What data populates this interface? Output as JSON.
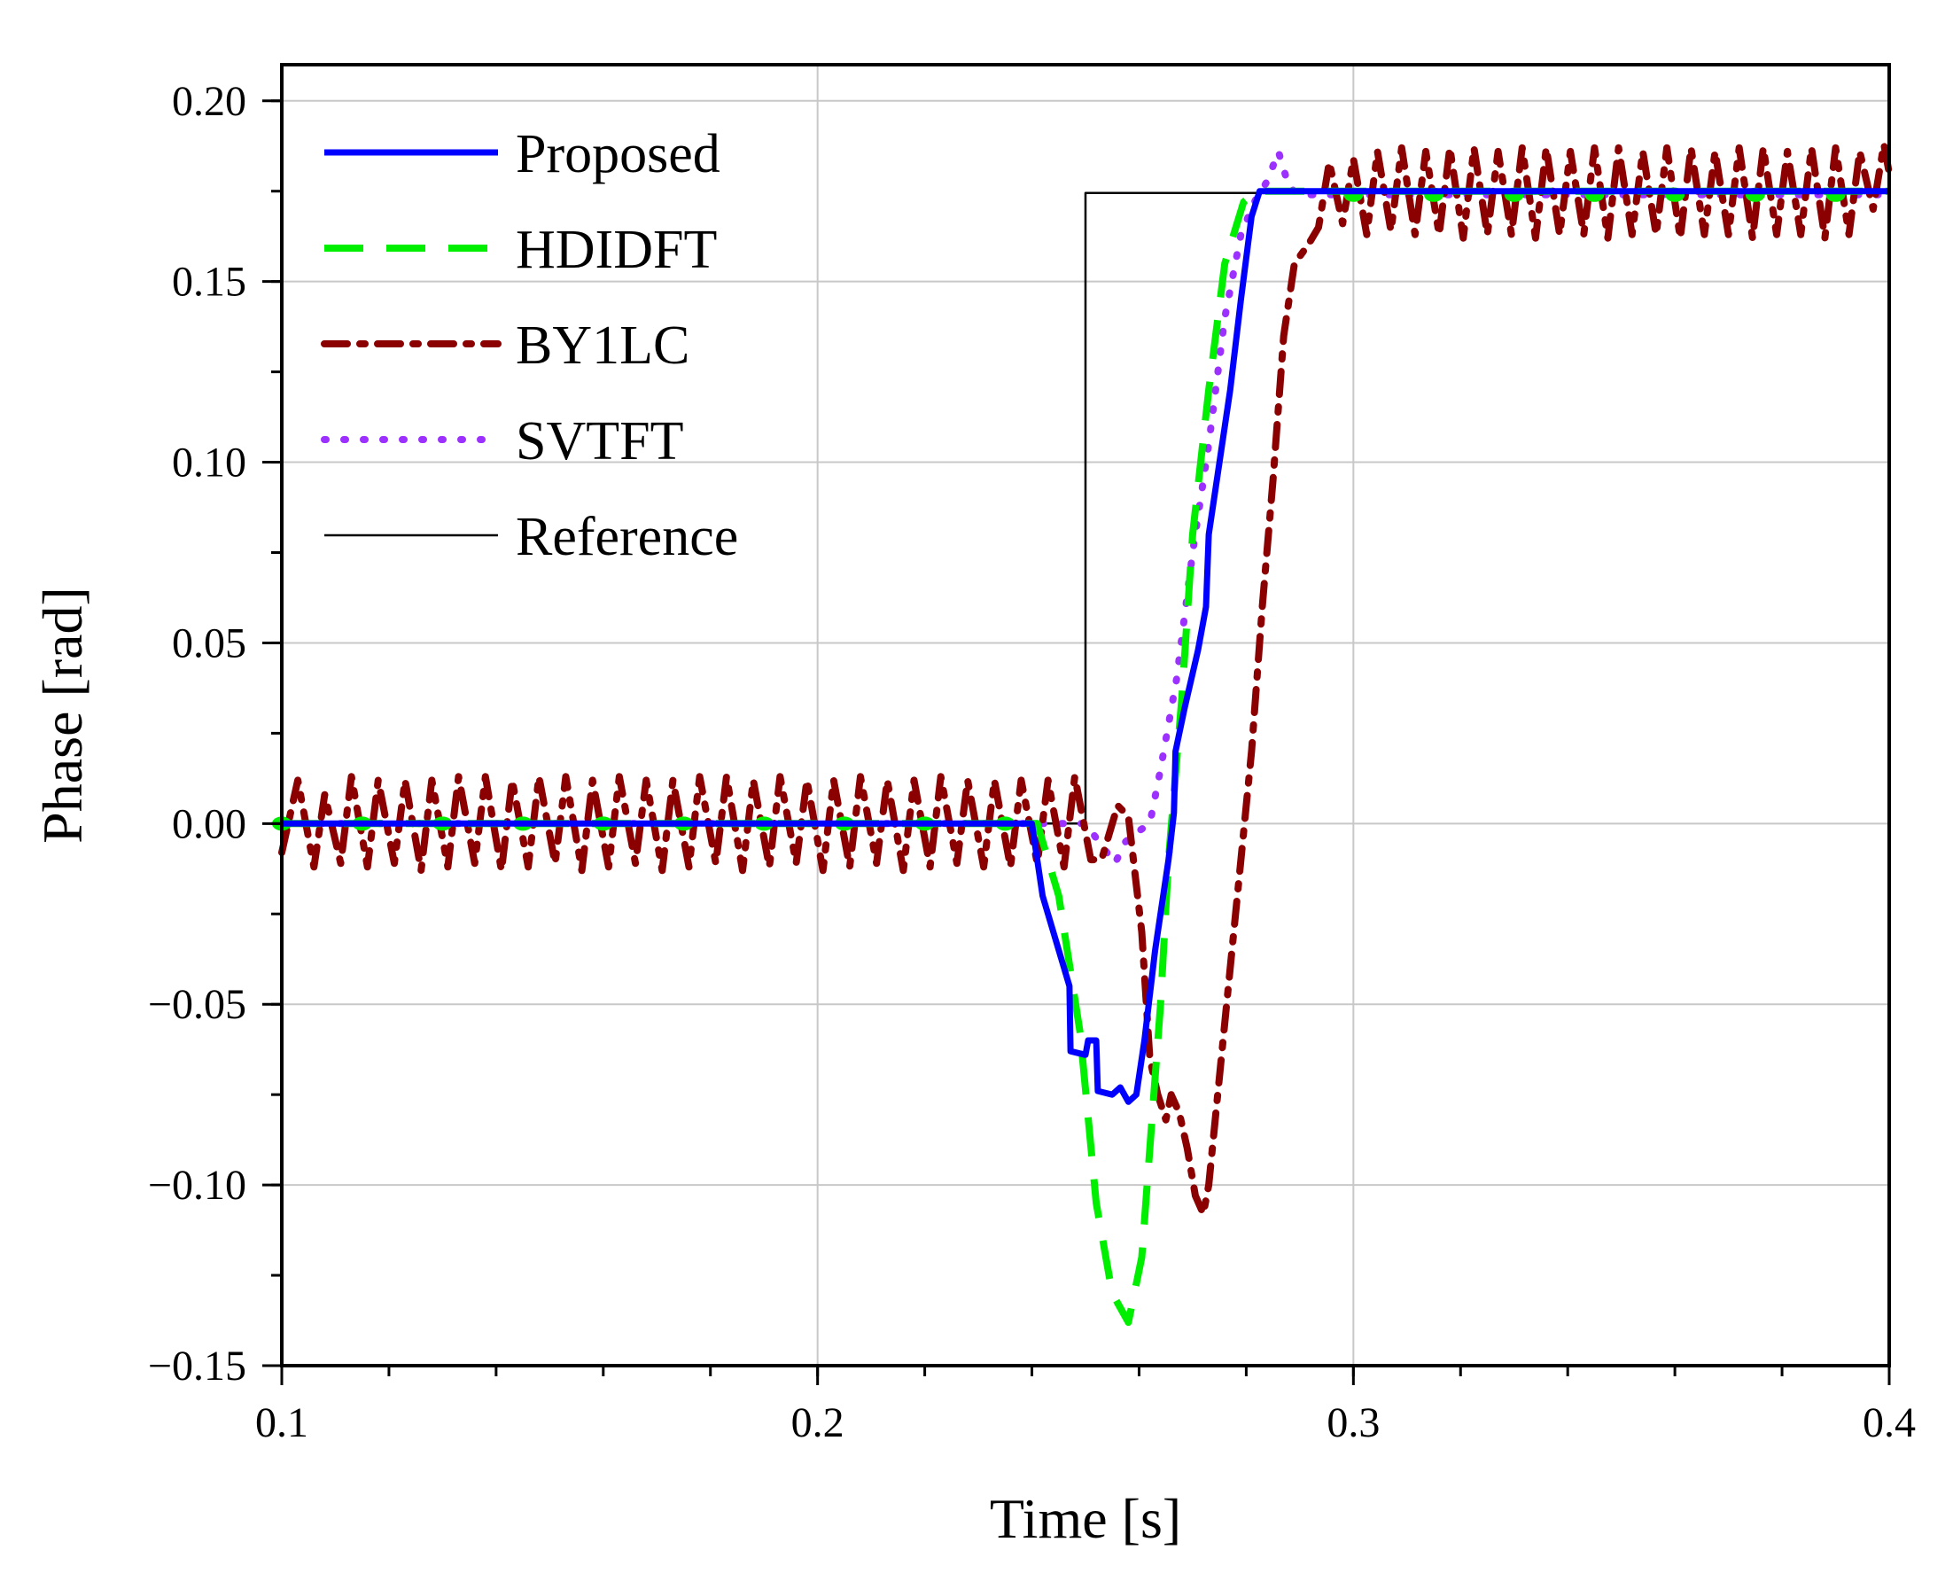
{
  "chart_data": {
    "type": "line",
    "title": "",
    "xlabel": "Time [s]",
    "ylabel": "Phase [rad]",
    "xlim": [
      0.1,
      0.4
    ],
    "ylim": [
      -0.15,
      0.21
    ],
    "xticks": [
      0.1,
      0.2,
      0.3,
      0.4
    ],
    "xtick_labels": [
      "0.1",
      "0.2",
      "0.3",
      "0.4"
    ],
    "yticks": [
      -0.15,
      -0.1,
      -0.05,
      0.0,
      0.05,
      0.1,
      0.15,
      0.2
    ],
    "ytick_labels": [
      "−0.15",
      "−0.10",
      "−0.05",
      "0.00",
      "0.05",
      "0.10",
      "0.15",
      "0.20"
    ],
    "grid": true,
    "legend_position": "top-left",
    "series": [
      {
        "name": "Proposed",
        "color": "#0000ff",
        "style": "solid",
        "points": [
          [
            0.1,
            0.0
          ],
          [
            0.24,
            0.0
          ],
          [
            0.242,
            -0.02
          ],
          [
            0.245,
            -0.035
          ],
          [
            0.247,
            -0.045
          ],
          [
            0.2472,
            -0.063
          ],
          [
            0.25,
            -0.064
          ],
          [
            0.2505,
            -0.06
          ],
          [
            0.252,
            -0.06
          ],
          [
            0.2523,
            -0.074
          ],
          [
            0.255,
            -0.075
          ],
          [
            0.2565,
            -0.073
          ],
          [
            0.258,
            -0.077
          ],
          [
            0.2595,
            -0.075
          ],
          [
            0.261,
            -0.06
          ],
          [
            0.263,
            -0.035
          ],
          [
            0.2655,
            -0.01
          ],
          [
            0.2665,
            0.003
          ],
          [
            0.2668,
            0.02
          ],
          [
            0.2685,
            0.032
          ],
          [
            0.271,
            0.048
          ],
          [
            0.2725,
            0.06
          ],
          [
            0.273,
            0.08
          ],
          [
            0.275,
            0.1
          ],
          [
            0.277,
            0.12
          ],
          [
            0.279,
            0.145
          ],
          [
            0.281,
            0.168
          ],
          [
            0.2825,
            0.175
          ],
          [
            0.4,
            0.175
          ]
        ]
      },
      {
        "name": "HDIDFT",
        "color": "#00ee00",
        "style": "dashed",
        "points": [
          [
            0.1,
            0.0
          ],
          [
            0.241,
            0.0
          ],
          [
            0.245,
            -0.02
          ],
          [
            0.249,
            -0.058
          ],
          [
            0.252,
            -0.105
          ],
          [
            0.255,
            -0.13
          ],
          [
            0.258,
            -0.138
          ],
          [
            0.2605,
            -0.12
          ],
          [
            0.2625,
            -0.08
          ],
          [
            0.264,
            -0.05
          ],
          [
            0.2655,
            -0.01
          ],
          [
            0.268,
            0.035
          ],
          [
            0.27,
            0.08
          ],
          [
            0.273,
            0.12
          ],
          [
            0.276,
            0.155
          ],
          [
            0.2795,
            0.172
          ],
          [
            0.282,
            0.175
          ],
          [
            0.4,
            0.175
          ]
        ]
      },
      {
        "name": "BY1LC",
        "color": "#8b0000",
        "style": "dashdot",
        "points": [
          [
            0.1,
            -0.008
          ],
          [
            0.103,
            0.012
          ],
          [
            0.106,
            -0.012
          ],
          [
            0.108,
            0.008
          ],
          [
            0.111,
            -0.011
          ],
          [
            0.113,
            0.013
          ],
          [
            0.116,
            -0.012
          ],
          [
            0.118,
            0.012
          ],
          [
            0.121,
            -0.011
          ],
          [
            0.123,
            0.012
          ],
          [
            0.126,
            -0.013
          ],
          [
            0.128,
            0.012
          ],
          [
            0.131,
            -0.012
          ],
          [
            0.133,
            0.013
          ],
          [
            0.136,
            -0.011
          ],
          [
            0.138,
            0.013
          ],
          [
            0.141,
            -0.013
          ],
          [
            0.143,
            0.012
          ],
          [
            0.146,
            -0.012
          ],
          [
            0.148,
            0.013
          ],
          [
            0.151,
            -0.011
          ],
          [
            0.153,
            0.013
          ],
          [
            0.156,
            -0.013
          ],
          [
            0.158,
            0.012
          ],
          [
            0.161,
            -0.012
          ],
          [
            0.163,
            0.013
          ],
          [
            0.166,
            -0.011
          ],
          [
            0.168,
            0.012
          ],
          [
            0.171,
            -0.013
          ],
          [
            0.173,
            0.012
          ],
          [
            0.176,
            -0.012
          ],
          [
            0.178,
            0.013
          ],
          [
            0.181,
            -0.011
          ],
          [
            0.183,
            0.013
          ],
          [
            0.186,
            -0.013
          ],
          [
            0.188,
            0.012
          ],
          [
            0.191,
            -0.012
          ],
          [
            0.193,
            0.013
          ],
          [
            0.196,
            -0.011
          ],
          [
            0.198,
            0.012
          ],
          [
            0.201,
            -0.013
          ],
          [
            0.203,
            0.012
          ],
          [
            0.206,
            -0.012
          ],
          [
            0.208,
            0.013
          ],
          [
            0.211,
            -0.011
          ],
          [
            0.213,
            0.012
          ],
          [
            0.216,
            -0.013
          ],
          [
            0.218,
            0.012
          ],
          [
            0.221,
            -0.012
          ],
          [
            0.223,
            0.013
          ],
          [
            0.226,
            -0.011
          ],
          [
            0.228,
            0.012
          ],
          [
            0.231,
            -0.012
          ],
          [
            0.233,
            0.012
          ],
          [
            0.236,
            -0.012
          ],
          [
            0.238,
            0.012
          ],
          [
            0.241,
            -0.011
          ],
          [
            0.243,
            0.012
          ],
          [
            0.246,
            -0.012
          ],
          [
            0.248,
            0.013
          ],
          [
            0.251,
            -0.01
          ],
          [
            0.253,
            -0.01
          ],
          [
            0.256,
            0.005
          ],
          [
            0.258,
            0.002
          ],
          [
            0.2605,
            -0.03
          ],
          [
            0.262,
            -0.065
          ],
          [
            0.2635,
            -0.075
          ],
          [
            0.265,
            -0.082
          ],
          [
            0.266,
            -0.075
          ],
          [
            0.2675,
            -0.08
          ],
          [
            0.269,
            -0.09
          ],
          [
            0.2705,
            -0.103
          ],
          [
            0.272,
            -0.108
          ],
          [
            0.273,
            -0.1
          ],
          [
            0.275,
            -0.07
          ],
          [
            0.277,
            -0.04
          ],
          [
            0.279,
            -0.01
          ],
          [
            0.281,
            0.02
          ],
          [
            0.283,
            0.06
          ],
          [
            0.285,
            0.095
          ],
          [
            0.287,
            0.135
          ],
          [
            0.289,
            0.155
          ],
          [
            0.2915,
            0.16
          ],
          [
            0.2935,
            0.165
          ],
          [
            0.2955,
            0.183
          ],
          [
            0.298,
            0.166
          ],
          [
            0.3,
            0.184
          ],
          [
            0.3025,
            0.163
          ],
          [
            0.3045,
            0.186
          ],
          [
            0.307,
            0.164
          ],
          [
            0.309,
            0.187
          ],
          [
            0.3115,
            0.163
          ],
          [
            0.3135,
            0.186
          ],
          [
            0.316,
            0.163
          ],
          [
            0.318,
            0.187
          ],
          [
            0.3205,
            0.162
          ],
          [
            0.3225,
            0.187
          ],
          [
            0.325,
            0.163
          ],
          [
            0.327,
            0.186
          ],
          [
            0.3295,
            0.163
          ],
          [
            0.3315,
            0.187
          ],
          [
            0.334,
            0.162
          ],
          [
            0.336,
            0.187
          ],
          [
            0.3385,
            0.163
          ],
          [
            0.3405,
            0.186
          ],
          [
            0.343,
            0.163
          ],
          [
            0.345,
            0.187
          ],
          [
            0.3475,
            0.162
          ],
          [
            0.3495,
            0.187
          ],
          [
            0.352,
            0.163
          ],
          [
            0.354,
            0.186
          ],
          [
            0.3565,
            0.163
          ],
          [
            0.3585,
            0.187
          ],
          [
            0.361,
            0.162
          ],
          [
            0.363,
            0.187
          ],
          [
            0.3655,
            0.163
          ],
          [
            0.3675,
            0.186
          ],
          [
            0.37,
            0.163
          ],
          [
            0.372,
            0.187
          ],
          [
            0.3745,
            0.162
          ],
          [
            0.3765,
            0.187
          ],
          [
            0.379,
            0.163
          ],
          [
            0.381,
            0.186
          ],
          [
            0.3835,
            0.163
          ],
          [
            0.3855,
            0.187
          ],
          [
            0.388,
            0.162
          ],
          [
            0.39,
            0.187
          ],
          [
            0.3925,
            0.163
          ],
          [
            0.3945,
            0.186
          ],
          [
            0.397,
            0.17
          ],
          [
            0.399,
            0.188
          ],
          [
            0.4,
            0.18
          ]
        ]
      },
      {
        "name": "SVTFT",
        "color": "#9b30ff",
        "style": "dotted",
        "points": [
          [
            0.1,
            0.0
          ],
          [
            0.25,
            0.0
          ],
          [
            0.254,
            -0.008
          ],
          [
            0.2555,
            -0.011
          ],
          [
            0.2575,
            -0.005
          ],
          [
            0.26,
            -0.002
          ],
          [
            0.262,
            0.0
          ],
          [
            0.264,
            0.015
          ],
          [
            0.267,
            0.04
          ],
          [
            0.27,
            0.075
          ],
          [
            0.273,
            0.105
          ],
          [
            0.276,
            0.14
          ],
          [
            0.279,
            0.163
          ],
          [
            0.2815,
            0.172
          ],
          [
            0.284,
            0.178
          ],
          [
            0.286,
            0.186
          ],
          [
            0.288,
            0.176
          ],
          [
            0.29,
            0.174
          ],
          [
            0.4,
            0.174
          ]
        ]
      },
      {
        "name": "Reference",
        "color": "#000000",
        "style": "solid-thin",
        "points": [
          [
            0.1,
            0.0
          ],
          [
            0.25,
            0.0
          ],
          [
            0.25,
            0.1745
          ],
          [
            0.4,
            0.1745
          ]
        ]
      }
    ],
    "markers": {
      "series": "HDIDFT",
      "color": "#00ee00",
      "points": [
        [
          0.1,
          0.0
        ],
        [
          0.115,
          0.0
        ],
        [
          0.13,
          0.0
        ],
        [
          0.145,
          0.0
        ],
        [
          0.16,
          0.0
        ],
        [
          0.175,
          0.0
        ],
        [
          0.19,
          0.0
        ],
        [
          0.205,
          0.0
        ],
        [
          0.22,
          0.0
        ],
        [
          0.235,
          0.0
        ],
        [
          0.3,
          0.174
        ],
        [
          0.315,
          0.174
        ],
        [
          0.33,
          0.174
        ],
        [
          0.345,
          0.174
        ],
        [
          0.36,
          0.174
        ],
        [
          0.375,
          0.174
        ],
        [
          0.39,
          0.174
        ]
      ]
    }
  }
}
